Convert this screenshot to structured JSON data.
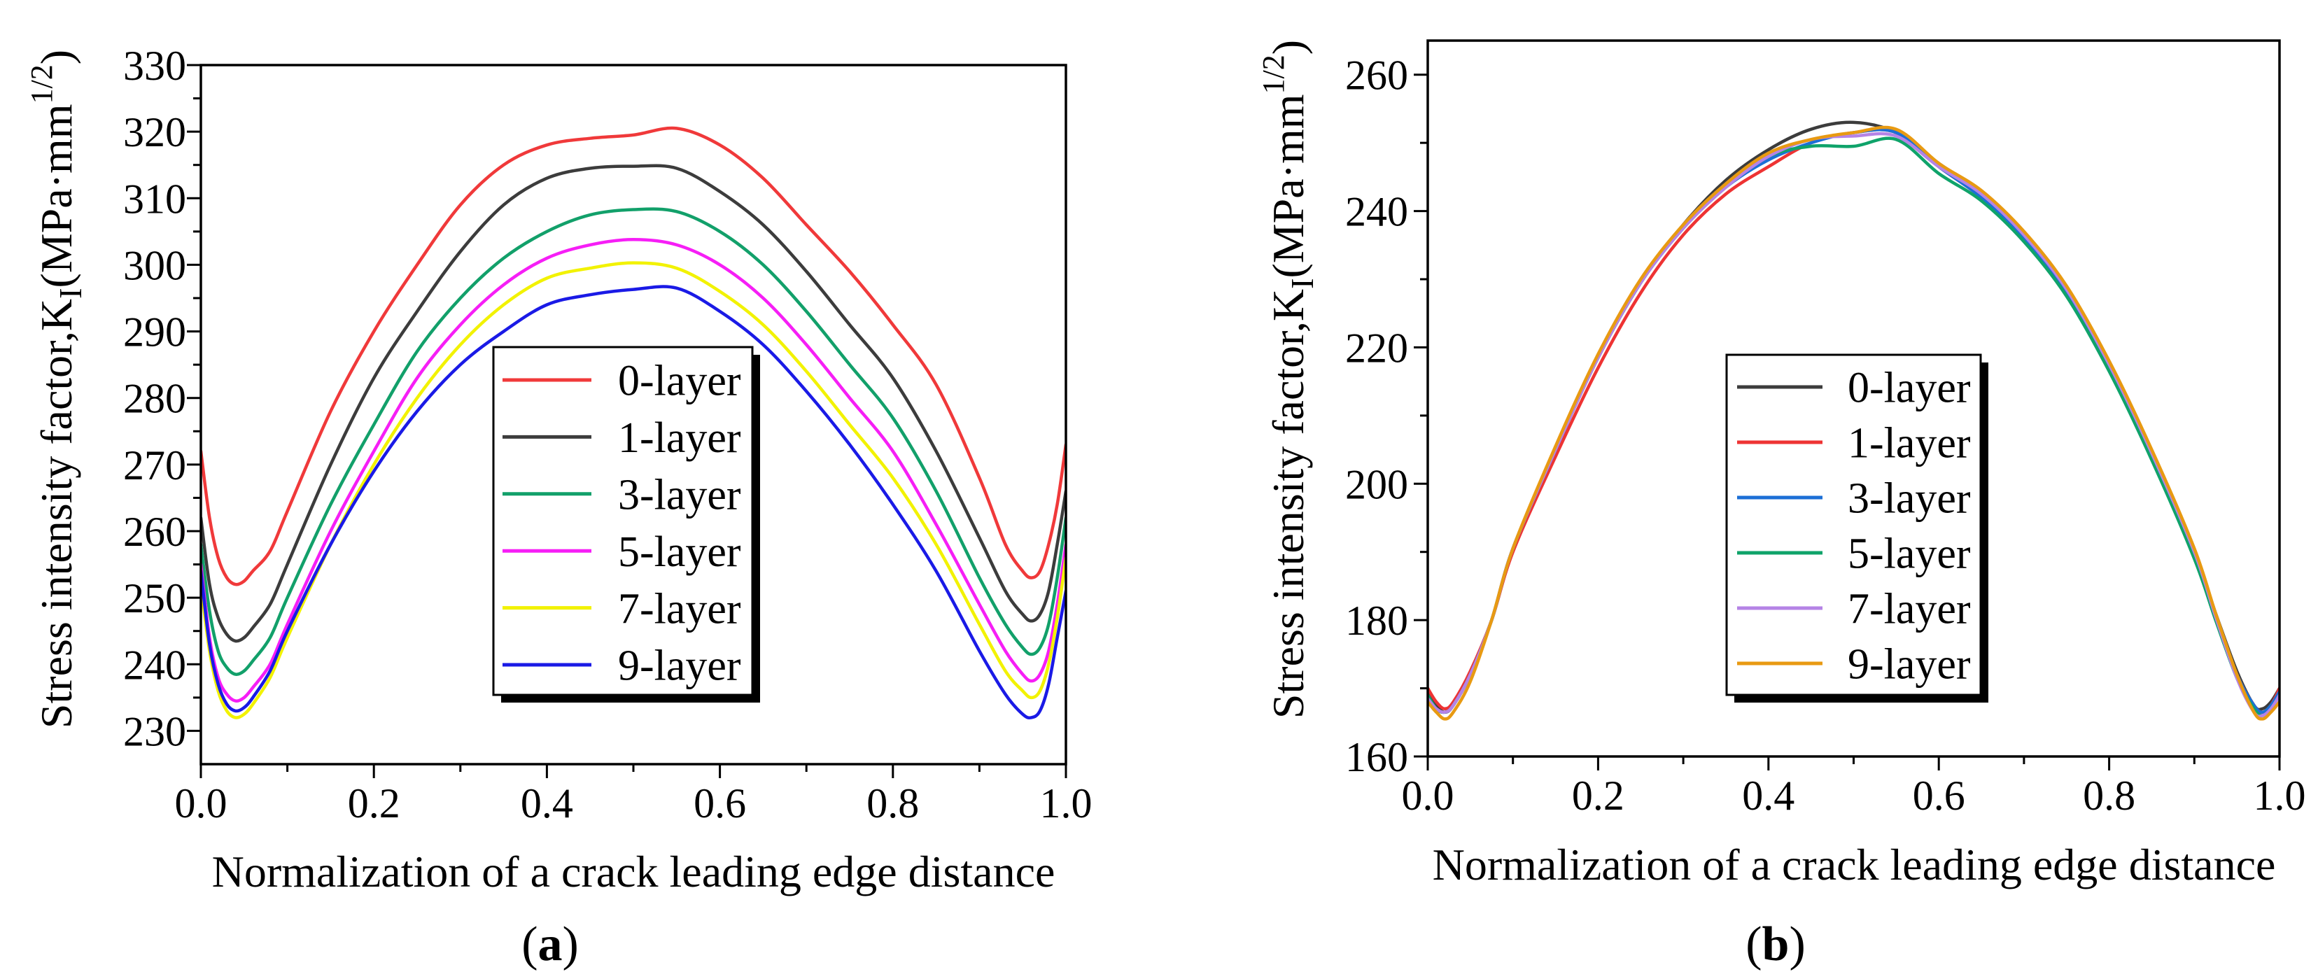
{
  "chart_data": [
    {
      "type": "line",
      "title": "",
      "panel": {
        "open": "(",
        "letter": "a",
        "close": ")"
      },
      "xlabel": "Normalization of a crack leading edge distance",
      "ylabel": {
        "main": "Stress intensity factor,K",
        "sub": "I",
        "unit": "(MPa·mm",
        "sup": "1/2",
        "close": ")"
      },
      "xlim": [
        0,
        1.0
      ],
      "ylim": [
        225,
        330
      ],
      "xticks": [
        "0.0",
        "0.2",
        "0.4",
        "0.6",
        "0.8",
        "1.0"
      ],
      "xtick_values": [
        0,
        0.2,
        0.4,
        0.6,
        0.8,
        1.0
      ],
      "xtick_minor_step": 0.1,
      "yticks": [
        "230",
        "240",
        "250",
        "260",
        "270",
        "280",
        "290",
        "300",
        "310",
        "320",
        "330"
      ],
      "ytick_values": [
        230,
        240,
        250,
        260,
        270,
        280,
        290,
        300,
        310,
        320,
        330
      ],
      "ytick_minor_step": 5,
      "grid": false,
      "legend_position": "center",
      "x": [
        0,
        0.01,
        0.02,
        0.03,
        0.04,
        0.05,
        0.06,
        0.08,
        0.1,
        0.15,
        0.2,
        0.25,
        0.3,
        0.35,
        0.4,
        0.45,
        0.5,
        0.55,
        0.6,
        0.65,
        0.7,
        0.75,
        0.8,
        0.85,
        0.9,
        0.93,
        0.95,
        0.96,
        0.97,
        0.98,
        0.99,
        1.0
      ],
      "series": [
        {
          "name": "0-layer",
          "color": "#f0393a",
          "values": [
            272,
            262,
            256,
            253,
            252,
            252.5,
            254,
            257,
            263,
            278,
            290,
            300,
            309,
            315,
            318,
            319,
            319.5,
            320.5,
            318,
            313,
            306,
            299,
            291,
            282,
            268,
            258,
            254,
            253,
            254,
            258,
            264,
            273
          ]
        },
        {
          "name": "1-layer",
          "color": "#3c3c3c",
          "values": [
            262,
            252,
            247,
            244.5,
            243.5,
            244,
            245.5,
            249,
            255,
            270,
            283,
            293,
            302,
            309,
            313,
            314.5,
            314.8,
            314.5,
            311,
            306,
            299,
            291,
            283,
            272,
            259,
            251,
            247.5,
            246.5,
            247.5,
            251,
            258,
            266
          ]
        },
        {
          "name": "3-layer",
          "color": "#12a06a",
          "values": [
            258,
            248,
            242,
            239.5,
            238.5,
            239,
            240.5,
            244,
            250,
            264,
            276,
            287,
            295,
            301,
            305,
            307.5,
            308.3,
            308,
            305,
            300,
            293,
            285,
            277,
            266,
            253,
            246,
            242.5,
            241.5,
            242.5,
            246,
            253,
            262
          ]
        },
        {
          "name": "5-layer",
          "color": "#f61ef6",
          "values": [
            255,
            244,
            238,
            235.5,
            234.5,
            235,
            236.5,
            240,
            246,
            260,
            272,
            283,
            291,
            297,
            301,
            303,
            303.8,
            303,
            300,
            295,
            288,
            280,
            272,
            261,
            249,
            242,
            238.5,
            237.5,
            238.5,
            242,
            249,
            258
          ]
        },
        {
          "name": "7-layer",
          "color": "#f2f200",
          "values": [
            252,
            242,
            236,
            233,
            232,
            232.5,
            234,
            238,
            244,
            258,
            270,
            280,
            288,
            294,
            298,
            299.5,
            300.3,
            299.5,
            296,
            291,
            284,
            276,
            268,
            258,
            246,
            239,
            236,
            235,
            236,
            240,
            247,
            256
          ]
        },
        {
          "name": "9-layer",
          "color": "#1a1ae6",
          "values": [
            254,
            243,
            237,
            234,
            233,
            233.5,
            235,
            239,
            245,
            258,
            269,
            278,
            285,
            290,
            294,
            295.5,
            296.3,
            296.5,
            293,
            288,
            281,
            273,
            264,
            254,
            242,
            235.5,
            232.5,
            232,
            233,
            237,
            244,
            251
          ]
        }
      ]
    },
    {
      "type": "line",
      "title": "",
      "panel": {
        "open": "(",
        "letter": "b",
        "close": ")"
      },
      "xlabel": "Normalization of a crack leading edge distance",
      "ylabel": {
        "main": "Stress intensity factor,K",
        "sub": "I",
        "unit": "(MPa·mm",
        "sup": "1/2",
        "close": ")"
      },
      "xlim": [
        0,
        1.0
      ],
      "ylim": [
        160,
        265
      ],
      "xticks": [
        "0.0",
        "0.2",
        "0.4",
        "0.6",
        "0.8",
        "1.0"
      ],
      "xtick_values": [
        0,
        0.2,
        0.4,
        0.6,
        0.8,
        1.0
      ],
      "xtick_minor_step": 0.1,
      "yticks": [
        "160",
        "180",
        "200",
        "220",
        "240",
        "260"
      ],
      "ytick_values": [
        160,
        180,
        200,
        220,
        240,
        260
      ],
      "ytick_minor_step": 10,
      "grid": false,
      "legend_position": "center-left",
      "x": [
        0,
        0.01,
        0.02,
        0.03,
        0.05,
        0.075,
        0.1,
        0.15,
        0.2,
        0.25,
        0.3,
        0.35,
        0.4,
        0.45,
        0.5,
        0.55,
        0.6,
        0.65,
        0.7,
        0.75,
        0.8,
        0.85,
        0.9,
        0.925,
        0.95,
        0.97,
        0.98,
        0.99,
        1.0
      ],
      "series": [
        {
          "name": "0-layer",
          "color": "#3c3c3c",
          "values": [
            170,
            167.5,
            166.5,
            167.5,
            172,
            180,
            190.5,
            205,
            218.5,
            229.5,
            238,
            244.5,
            249,
            252,
            253,
            251.5,
            247,
            242.5,
            236,
            228,
            217.5,
            204.5,
            190,
            181,
            172.5,
            167.5,
            167,
            168,
            170
          ]
        },
        {
          "name": "1-layer",
          "color": "#ee3333",
          "values": [
            170,
            168,
            167,
            168,
            172.5,
            180,
            190,
            204,
            217,
            228,
            236.5,
            242.5,
            246.5,
            250,
            251.5,
            251.5,
            246.5,
            242,
            236,
            228,
            217,
            204,
            189.5,
            180.5,
            172,
            167.5,
            166.5,
            167.5,
            170
          ]
        },
        {
          "name": "3-layer",
          "color": "#1c6fd6",
          "values": [
            169,
            167,
            166.5,
            167.5,
            172,
            180,
            190.5,
            205,
            218.5,
            229.5,
            237.5,
            243.5,
            247.5,
            250,
            251.5,
            251.5,
            246.5,
            242,
            236,
            228,
            217,
            204,
            189.5,
            180.5,
            172,
            167.5,
            166.5,
            167.5,
            169.5
          ]
        },
        {
          "name": "5-layer",
          "color": "#0fa36a",
          "values": [
            169,
            167,
            166.5,
            167.5,
            172,
            180,
            190.5,
            205,
            218.5,
            229.5,
            237.5,
            243.5,
            248,
            249.5,
            249.5,
            250.5,
            245.5,
            241.5,
            235.5,
            227.5,
            216.5,
            203.5,
            189,
            180,
            171.5,
            167,
            166,
            167,
            169
          ]
        },
        {
          "name": "7-layer",
          "color": "#b583e6",
          "values": [
            168.5,
            167,
            166.5,
            167.5,
            172,
            180,
            190.5,
            205,
            218.5,
            229.5,
            237.5,
            243.5,
            248,
            250.5,
            251,
            251,
            246.5,
            242.5,
            236.5,
            228.5,
            217.5,
            204.5,
            190,
            180.5,
            171.5,
            166.5,
            166,
            167,
            169
          ]
        },
        {
          "name": "9-layer",
          "color": "#e89a12",
          "values": [
            168,
            166.5,
            165.5,
            166.5,
            171,
            180,
            190.5,
            205.5,
            219,
            230,
            238,
            244,
            248.5,
            250.5,
            251.5,
            252,
            247,
            243,
            237,
            229,
            218,
            205,
            190.5,
            181,
            172,
            166.5,
            165.5,
            166.5,
            168
          ]
        }
      ]
    }
  ]
}
